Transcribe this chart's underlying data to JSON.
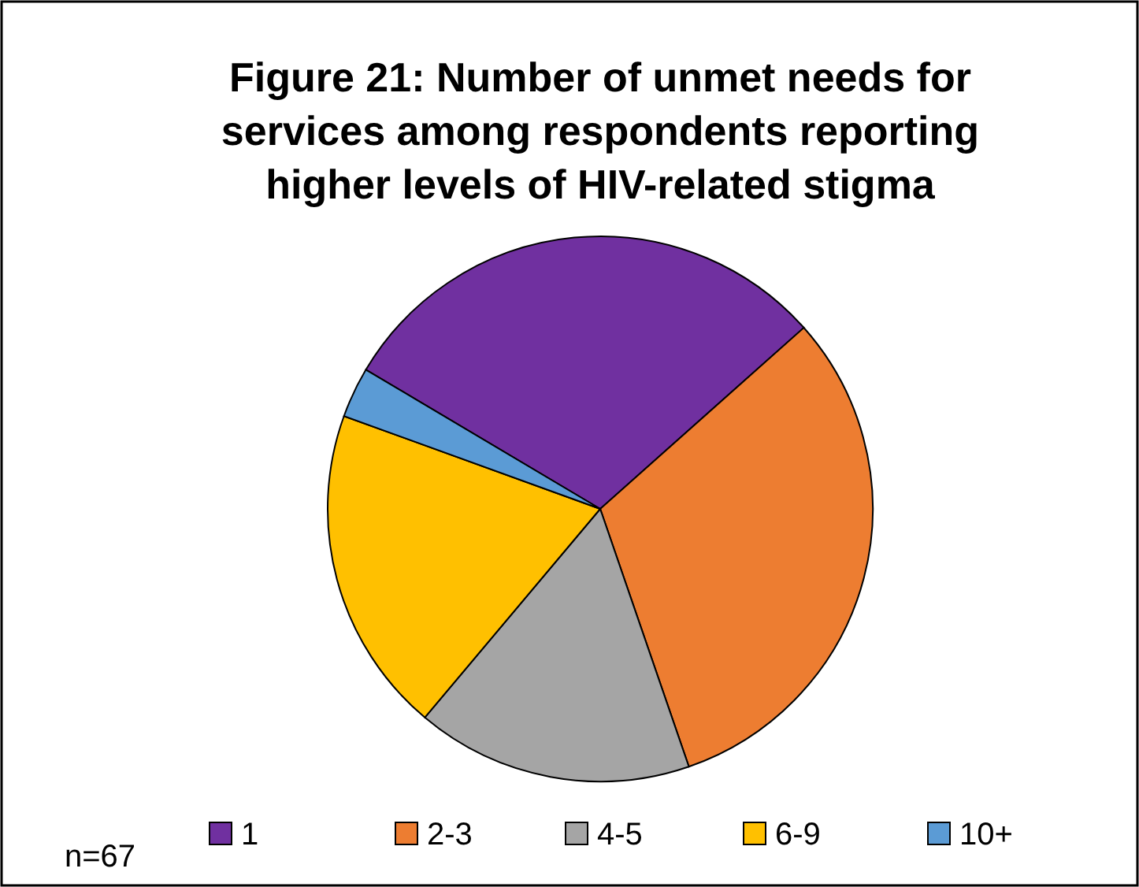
{
  "chart_data": {
    "type": "pie",
    "title": "Figure 21: Number of unmet needs for services among respondents reporting higher levels of HIV-related stigma",
    "categories": [
      "1",
      "2-3",
      "4-5",
      "6-9",
      "10+"
    ],
    "values": [
      29.9,
      31.3,
      16.4,
      19.4,
      3.0
    ],
    "colors": [
      "#7030a0",
      "#ed7d31",
      "#a5a5a5",
      "#ffc000",
      "#5b9bd5"
    ],
    "legend": "bottom",
    "annotations": [
      "n=67"
    ]
  }
}
